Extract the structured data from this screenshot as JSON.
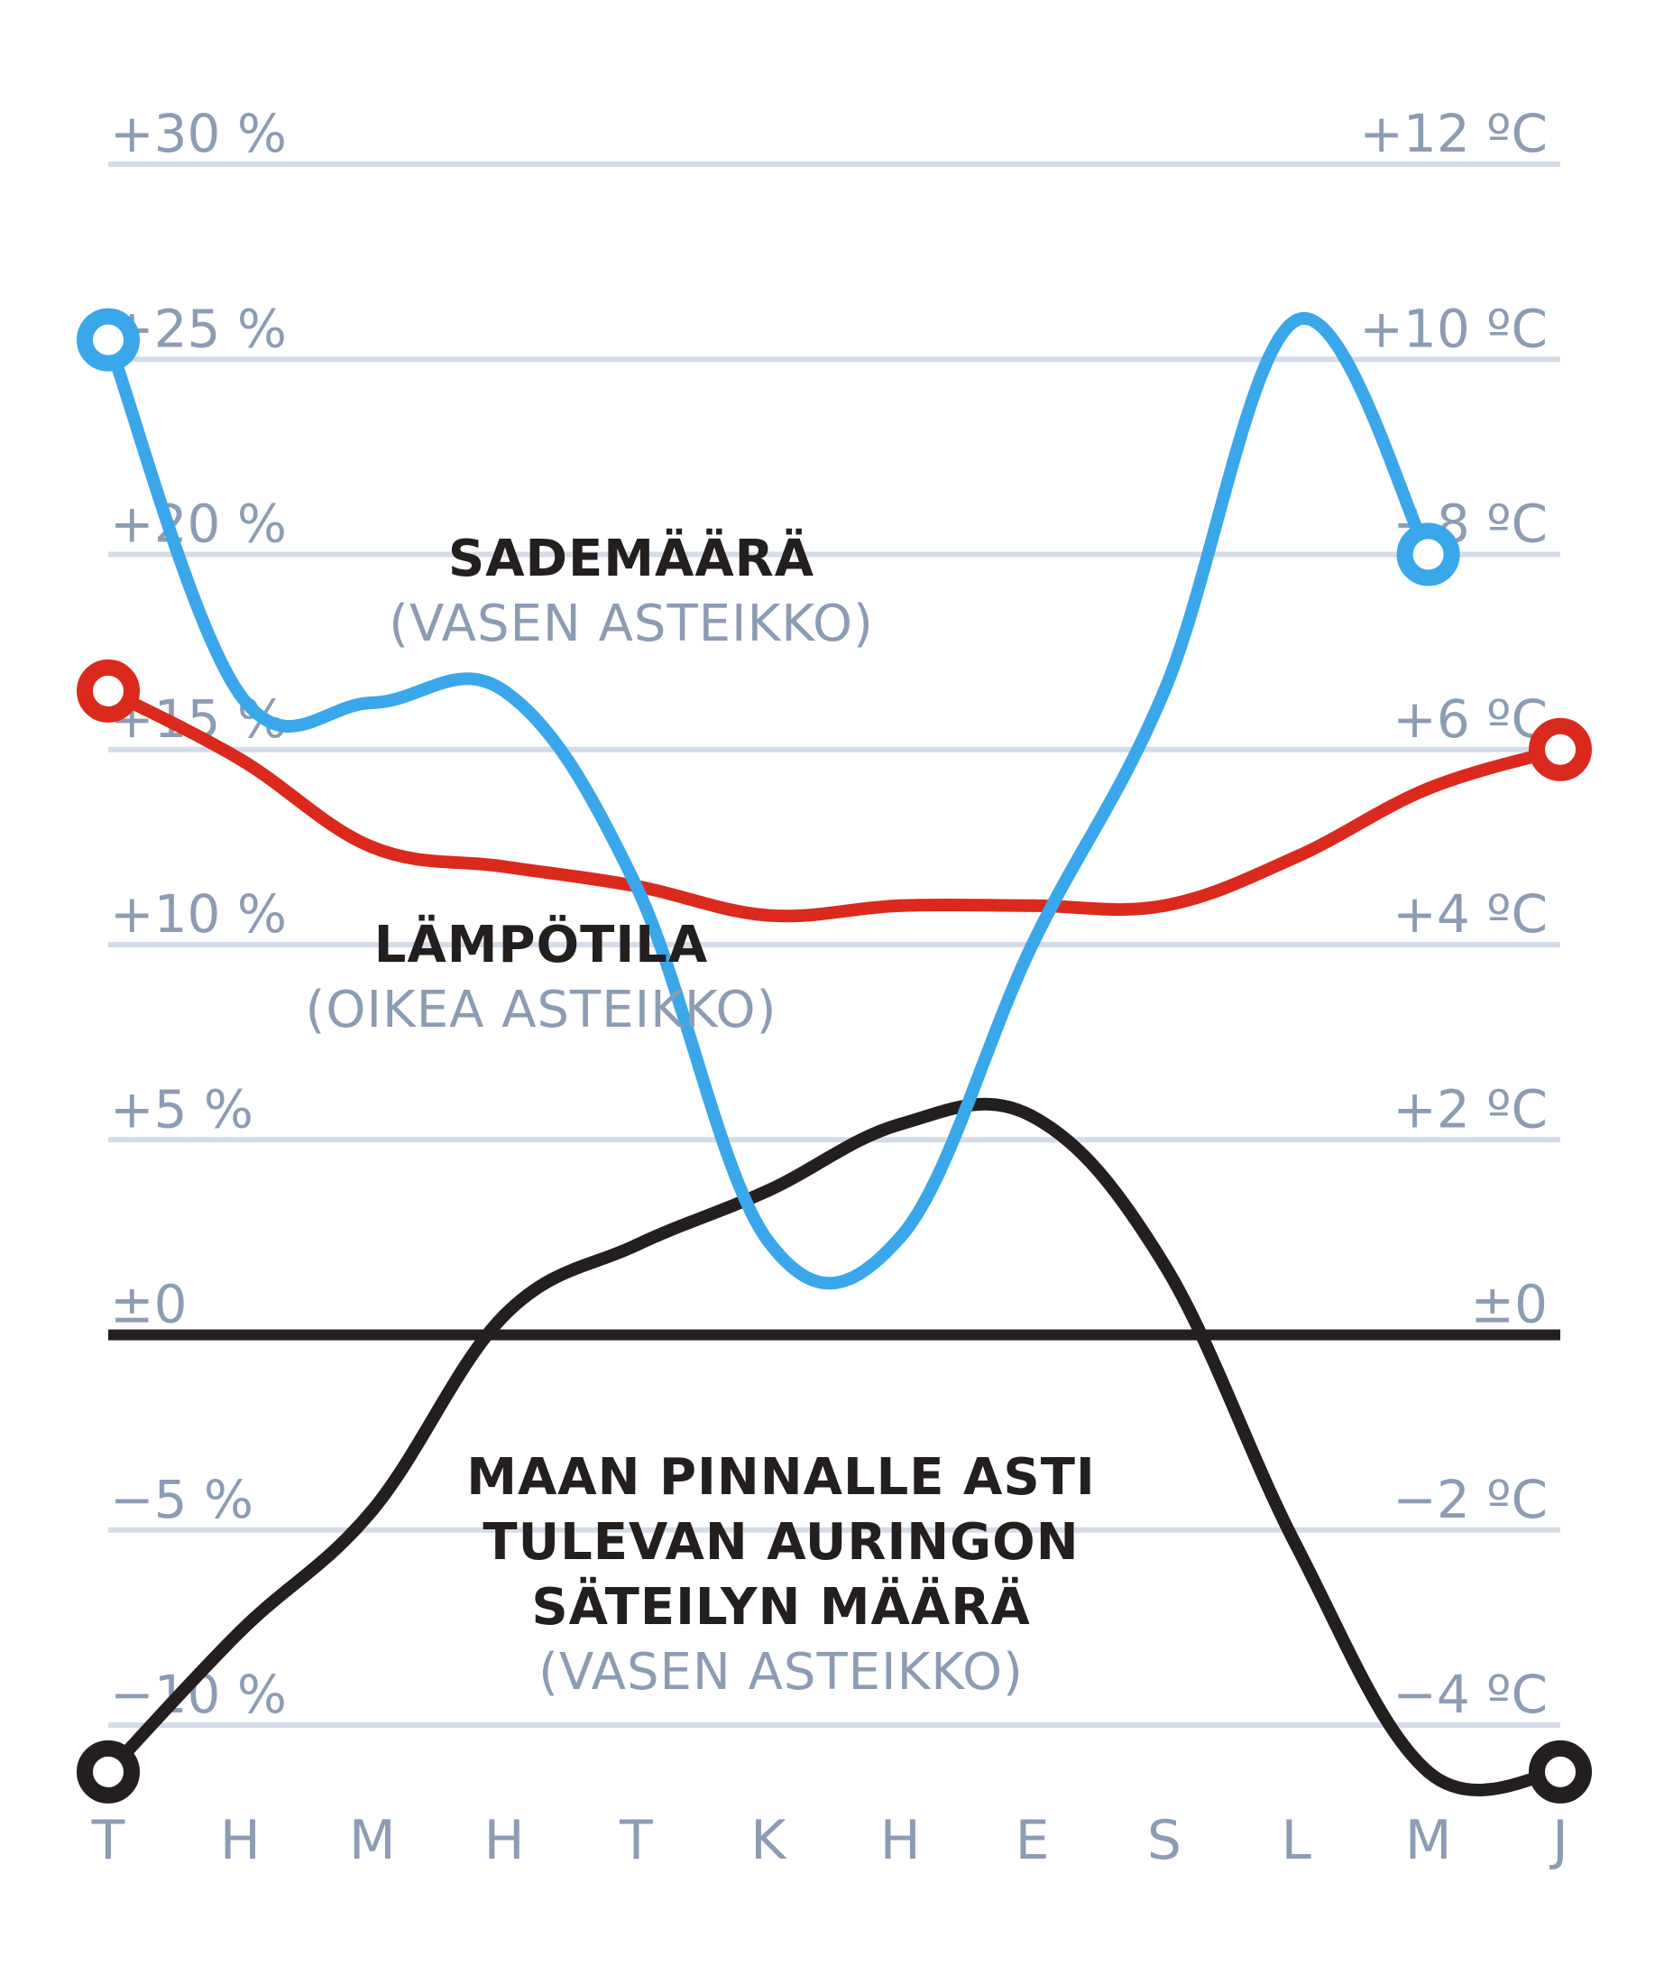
{
  "chart_data": {
    "type": "line",
    "categories": [
      "T",
      "H",
      "M",
      "H",
      "T",
      "K",
      "H",
      "E",
      "S",
      "L",
      "M",
      "J"
    ],
    "y_left": {
      "ticks": [
        "+30 %",
        "+25 %",
        "+20 %",
        "+15 %",
        "+10 %",
        "+5 %",
        "±0",
        "−5 %",
        "−10 %"
      ],
      "range": [
        -10,
        30
      ]
    },
    "y_right": {
      "ticks": [
        "+12 ºC",
        "+10 ºC",
        "+8 ºC",
        "+6 ºC",
        "+4 ºC",
        "+2 ºC",
        "±0",
        "−2 ºC",
        "−4 ºC"
      ],
      "range": [
        -4,
        12
      ]
    },
    "grid": true,
    "series": [
      {
        "name": "SADEMÄÄRÄ",
        "axis": "left",
        "color": "#3aa7ea",
        "values": [
          25.5,
          16.4,
          16.2,
          16.5,
          11.5,
          2.4,
          2.5,
          10,
          16.5,
          26,
          20,
          null
        ]
      },
      {
        "name": "LÄMPÖTILA",
        "axis": "right",
        "color": "#db2a1d",
        "values": [
          6.6,
          5.9,
          5.0,
          4.8,
          4.6,
          4.3,
          4.4,
          4.4,
          4.4,
          4.9,
          5.6,
          6.0
        ]
      },
      {
        "name": "MAAN PINNALLE ASTI TULEVAN AURINGON SÄTEILYN MÄÄRÄ",
        "axis": "left",
        "color": "#231f1e",
        "values": [
          -11.2,
          -7.6,
          -4.5,
          0.5,
          2.3,
          3.7,
          5.4,
          5.6,
          1.8,
          -5.4,
          -11.2,
          -11.2
        ]
      }
    ],
    "annotations": [
      {
        "lines": [
          "SADEMÄÄRÄ"
        ],
        "sub": "(VASEN ASTEIKKO)"
      },
      {
        "lines": [
          "LÄMPÖTILA"
        ],
        "sub": "(OIKEA ASTEIKKO)"
      },
      {
        "lines": [
          "MAAN PINNALLE ASTI",
          "TULEVAN AURINGON",
          "SÄTEILYN MÄÄRÄ"
        ],
        "sub": "(VASEN ASTEIKKO)"
      }
    ],
    "colors": {
      "grid": "#d5dbe8",
      "zero_line": "#231f1e",
      "tick_text": "#8c9cb3"
    }
  }
}
